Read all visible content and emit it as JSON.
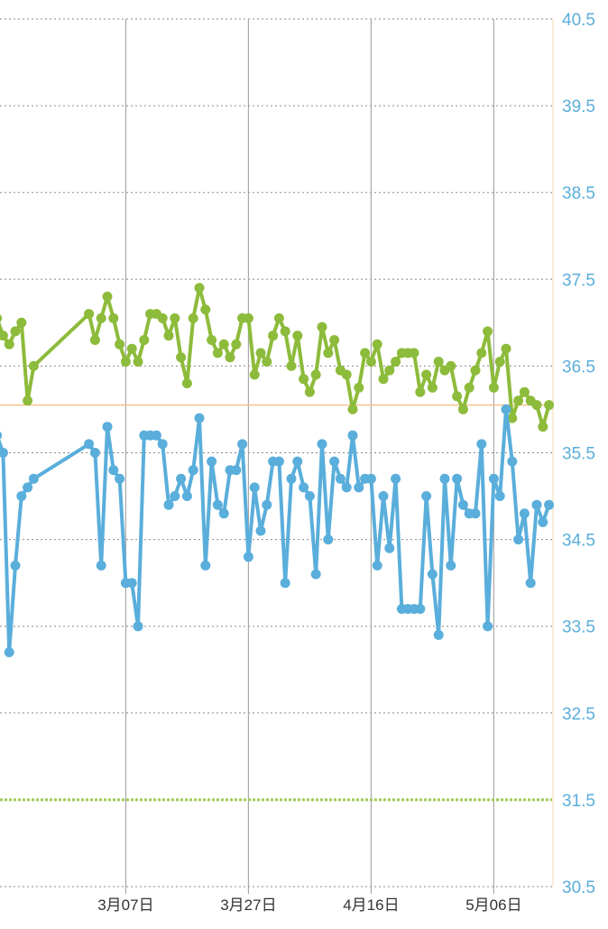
{
  "chart_data": {
    "type": "line",
    "title": "",
    "xlabel": "",
    "ylabel": "",
    "ylim": [
      30.5,
      40.5
    ],
    "y_ticks": [
      "40.5",
      "39.5",
      "38.5",
      "37.5",
      "36.5",
      "35.5",
      "34.5",
      "33.5",
      "32.5",
      "31.5",
      "30.5"
    ],
    "x_ticks": [
      {
        "x": 38,
        "label": "3月07日"
      },
      {
        "x": 58,
        "label": "3月27日"
      },
      {
        "x": 78,
        "label": "4月16日"
      },
      {
        "x": 98,
        "label": "5月06日"
      }
    ],
    "x_range": [
      17.5,
      107.5
    ],
    "grid": true,
    "reference_lines": [
      {
        "value": 36.05,
        "color": "#f4c58b"
      },
      {
        "value": 31.5,
        "color": "#a2c858"
      }
    ],
    "series": [
      {
        "color": "#8dbb3b",
        "x": [
          17,
          18,
          19,
          20,
          21,
          22,
          23,
          32,
          33,
          34,
          35,
          36,
          37,
          38,
          39,
          40,
          41,
          42,
          43,
          44,
          45,
          46,
          47,
          48,
          49,
          50,
          51,
          52,
          53,
          54,
          55,
          56,
          57,
          58,
          59,
          60,
          61,
          62,
          63,
          64,
          65,
          66,
          67,
          68,
          69,
          70,
          71,
          72,
          73,
          74,
          75,
          76,
          77,
          78,
          79,
          80,
          81,
          82,
          83,
          84,
          85,
          86,
          87,
          88,
          89,
          90,
          91,
          92,
          93,
          94,
          95,
          96,
          97,
          98,
          99,
          100,
          101,
          102,
          103,
          104,
          105,
          106,
          107
        ],
        "values": [
          37.05,
          36.85,
          36.75,
          36.9,
          37.0,
          36.1,
          36.5,
          37.1,
          36.8,
          37.05,
          37.3,
          37.05,
          36.75,
          36.55,
          36.7,
          36.55,
          36.8,
          37.1,
          37.1,
          37.05,
          36.85,
          37.05,
          36.6,
          36.3,
          37.05,
          37.4,
          37.15,
          36.8,
          36.65,
          36.75,
          36.6,
          36.75,
          37.05,
          37.05,
          36.4,
          36.65,
          36.55,
          36.85,
          37.05,
          36.9,
          36.5,
          36.85,
          36.35,
          36.2,
          36.4,
          36.95,
          36.65,
          36.8,
          36.45,
          36.4,
          36.0,
          36.25,
          36.65,
          36.55,
          36.75,
          36.35,
          36.45,
          36.55,
          36.65,
          36.65,
          36.65,
          36.2,
          36.4,
          36.25,
          36.55,
          36.45,
          36.5,
          36.15,
          36.0,
          36.25,
          36.45,
          36.65,
          36.9,
          36.25,
          36.55,
          36.7,
          35.9,
          36.1,
          36.2,
          36.1,
          36.05,
          35.8,
          36.05
        ]
      },
      {
        "color": "#5aaedb",
        "x": [
          17,
          18,
          19,
          20,
          21,
          22,
          23,
          32,
          33,
          34,
          35,
          36,
          37,
          38,
          39,
          40,
          41,
          42,
          43,
          44,
          45,
          46,
          47,
          48,
          49,
          50,
          51,
          52,
          53,
          54,
          55,
          56,
          57,
          58,
          59,
          60,
          61,
          62,
          63,
          64,
          65,
          66,
          67,
          68,
          69,
          70,
          71,
          72,
          73,
          74,
          75,
          76,
          77,
          78,
          79,
          80,
          81,
          82,
          83,
          84,
          85,
          86,
          87,
          88,
          89,
          90,
          91,
          92,
          93,
          94,
          95,
          96,
          97,
          98,
          99,
          100,
          101,
          102,
          103,
          104,
          105,
          106,
          107
        ],
        "values": [
          35.7,
          35.5,
          33.2,
          34.2,
          35.0,
          35.1,
          35.2,
          35.6,
          35.5,
          34.2,
          35.8,
          35.3,
          35.2,
          34.0,
          34.0,
          33.5,
          35.7,
          35.7,
          35.7,
          35.6,
          34.9,
          35.0,
          35.2,
          35.0,
          35.3,
          35.9,
          34.2,
          35.4,
          34.9,
          34.8,
          35.3,
          35.3,
          35.6,
          34.3,
          35.1,
          34.6,
          34.9,
          35.4,
          35.4,
          34.0,
          35.2,
          35.4,
          35.1,
          35.0,
          34.1,
          35.6,
          34.5,
          35.4,
          35.2,
          35.1,
          35.7,
          35.1,
          35.2,
          35.2,
          34.2,
          35.0,
          34.4,
          35.2,
          33.7,
          33.7,
          33.7,
          33.7,
          35.0,
          34.1,
          33.4,
          35.2,
          34.2,
          35.2,
          34.9,
          34.8,
          34.8,
          35.6,
          33.5,
          35.2,
          35.0,
          36.0,
          35.4,
          34.5,
          34.8,
          34.0,
          34.9,
          34.7,
          34.9
        ]
      }
    ]
  }
}
